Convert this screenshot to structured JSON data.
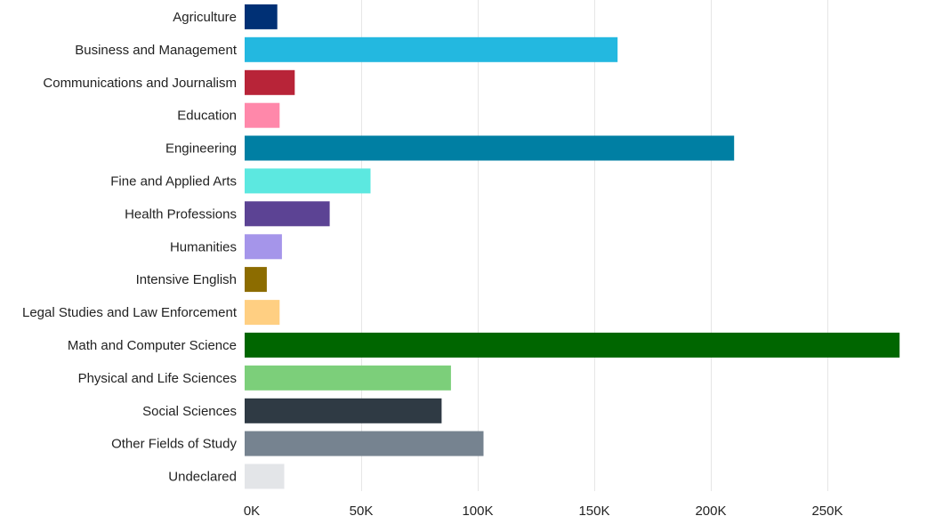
{
  "chart_data": {
    "type": "bar",
    "orientation": "horizontal",
    "title": "",
    "xlabel": "",
    "ylabel": "",
    "xlim": [
      0,
      290000
    ],
    "xticks": [
      0,
      50000,
      100000,
      150000,
      200000,
      250000
    ],
    "xtick_labels": [
      "0K",
      "50K",
      "100K",
      "150K",
      "200K",
      "250K"
    ],
    "grid": "vertical",
    "legend": "none",
    "categories": [
      "Agriculture",
      "Business and Management",
      "Communications and Journalism",
      "Education",
      "Engineering",
      "Fine and Applied Arts",
      "Health Professions",
      "Humanities",
      "Intensive English",
      "Legal Studies and Law Enforcement",
      "Math and Computer Science",
      "Physical and Life Sciences",
      "Social Sciences",
      "Other Fields of Study",
      "Undeclared"
    ],
    "values": [
      14000,
      160000,
      21500,
      15000,
      210000,
      54000,
      36500,
      16000,
      9500,
      15000,
      281000,
      88500,
      84500,
      102500,
      17000
    ],
    "colors": [
      "#003075",
      "#23b8e0",
      "#b82438",
      "#ff88aa",
      "#007fa3",
      "#5ce8e0",
      "#5c4394",
      "#a595ea",
      "#8c6c00",
      "#ffcf82",
      "#006600",
      "#7ccf7a",
      "#2f3a44",
      "#768390",
      "#e3e5e8"
    ]
  }
}
